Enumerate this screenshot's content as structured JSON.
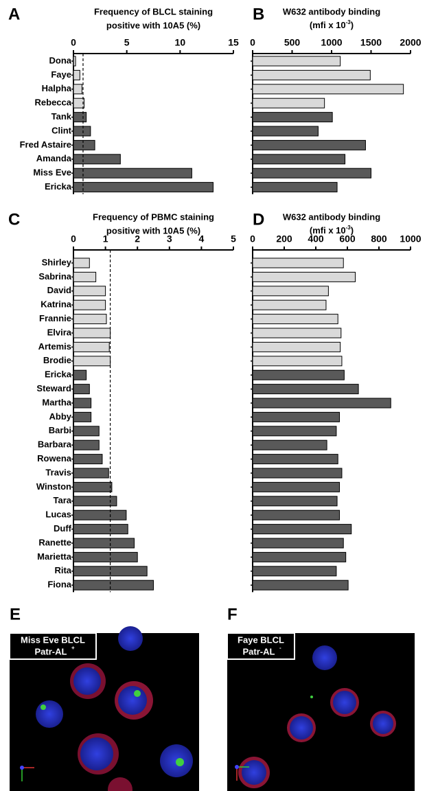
{
  "chart_data": [
    {
      "type": "hbar",
      "panel": "A",
      "title": [
        "Frequency of BLCL staining",
        "positive with 10A5 (%)"
      ],
      "categories": [
        "Dona",
        "Faye",
        "Halpha",
        "Rebecca",
        "Tank",
        "Clint",
        "Fred Astaire",
        "Amanda",
        "Miss Eve",
        "Ericka"
      ],
      "values": [
        0.2,
        0.6,
        0.8,
        1.0,
        1.2,
        1.6,
        2.0,
        4.4,
        11.1,
        13.1
      ],
      "colors": [
        "#d9d9d9",
        "#d9d9d9",
        "#d9d9d9",
        "#d9d9d9",
        "#595959",
        "#595959",
        "#595959",
        "#595959",
        "#595959",
        "#595959"
      ],
      "xlim": [
        0,
        15
      ],
      "xticks": [
        0,
        5,
        10,
        15
      ],
      "reference_line": 0.9
    },
    {
      "type": "hbar",
      "panel": "B",
      "title": [
        "W632 antibody binding"
      ],
      "unit": [
        "(mfi x 10",
        "-3",
        ")"
      ],
      "values": [
        1110,
        1490,
        1910,
        910,
        1010,
        830,
        1430,
        1170,
        1500,
        1070
      ],
      "colors": [
        "#d9d9d9",
        "#d9d9d9",
        "#d9d9d9",
        "#d9d9d9",
        "#595959",
        "#595959",
        "#595959",
        "#595959",
        "#595959",
        "#595959"
      ],
      "xlim": [
        0,
        2000
      ],
      "xticks": [
        0,
        500,
        1000,
        1500,
        2000
      ]
    },
    {
      "type": "hbar",
      "panel": "C",
      "title": [
        "Frequency of PBMC staining",
        "positive with 10A5 (%)"
      ],
      "categories": [
        "Shirley",
        "Sabrina",
        "David",
        "Katrina",
        "Frannie",
        "Elvira",
        "Artemis",
        "Brodie",
        "Ericka",
        "Steward",
        "Martha",
        "Abby",
        "Barbi",
        "Barbara",
        "Rowena",
        "Travis",
        "Winston",
        "Tara",
        "Lucas",
        "Duff",
        "Ranette",
        "Marietta",
        "Rita",
        "Fiona"
      ],
      "values": [
        0.5,
        0.7,
        1.0,
        1.0,
        1.03,
        1.15,
        1.12,
        1.15,
        0.4,
        0.5,
        0.55,
        0.55,
        0.8,
        0.8,
        0.9,
        1.1,
        1.2,
        1.35,
        1.65,
        1.7,
        1.9,
        2.0,
        2.3,
        2.5
      ],
      "colors": [
        "#d9d9d9",
        "#d9d9d9",
        "#d9d9d9",
        "#d9d9d9",
        "#d9d9d9",
        "#d9d9d9",
        "#d9d9d9",
        "#d9d9d9",
        "#595959",
        "#595959",
        "#595959",
        "#595959",
        "#595959",
        "#595959",
        "#595959",
        "#595959",
        "#595959",
        "#595959",
        "#595959",
        "#595959",
        "#595959",
        "#595959",
        "#595959",
        "#595959"
      ],
      "xlim": [
        0,
        5
      ],
      "xticks": [
        0,
        1,
        2,
        3,
        4,
        5
      ],
      "reference_line": 1.15
    },
    {
      "type": "hbar",
      "panel": "D",
      "title": [
        "W632 antibody binding"
      ],
      "unit": [
        "(mfi x 10",
        "-3",
        ")"
      ],
      "values": [
        575,
        650,
        480,
        465,
        540,
        560,
        555,
        565,
        580,
        670,
        875,
        550,
        530,
        470,
        540,
        565,
        550,
        535,
        550,
        625,
        575,
        590,
        530,
        605
      ],
      "colors": [
        "#d9d9d9",
        "#d9d9d9",
        "#d9d9d9",
        "#d9d9d9",
        "#d9d9d9",
        "#d9d9d9",
        "#d9d9d9",
        "#d9d9d9",
        "#595959",
        "#595959",
        "#595959",
        "#595959",
        "#595959",
        "#595959",
        "#595959",
        "#595959",
        "#595959",
        "#595959",
        "#595959",
        "#595959",
        "#595959",
        "#595959",
        "#595959",
        "#595959"
      ],
      "xlim": [
        0,
        1000
      ],
      "xticks": [
        0,
        200,
        400,
        600,
        800,
        1000
      ]
    }
  ],
  "images": [
    {
      "panel": "E",
      "label": "Miss Eve BLCL",
      "sublabel": "Patr-AL",
      "superscript": "+"
    },
    {
      "panel": "F",
      "label": "Faye BLCL",
      "sublabel": "Patr-AL",
      "superscript": "-"
    }
  ]
}
